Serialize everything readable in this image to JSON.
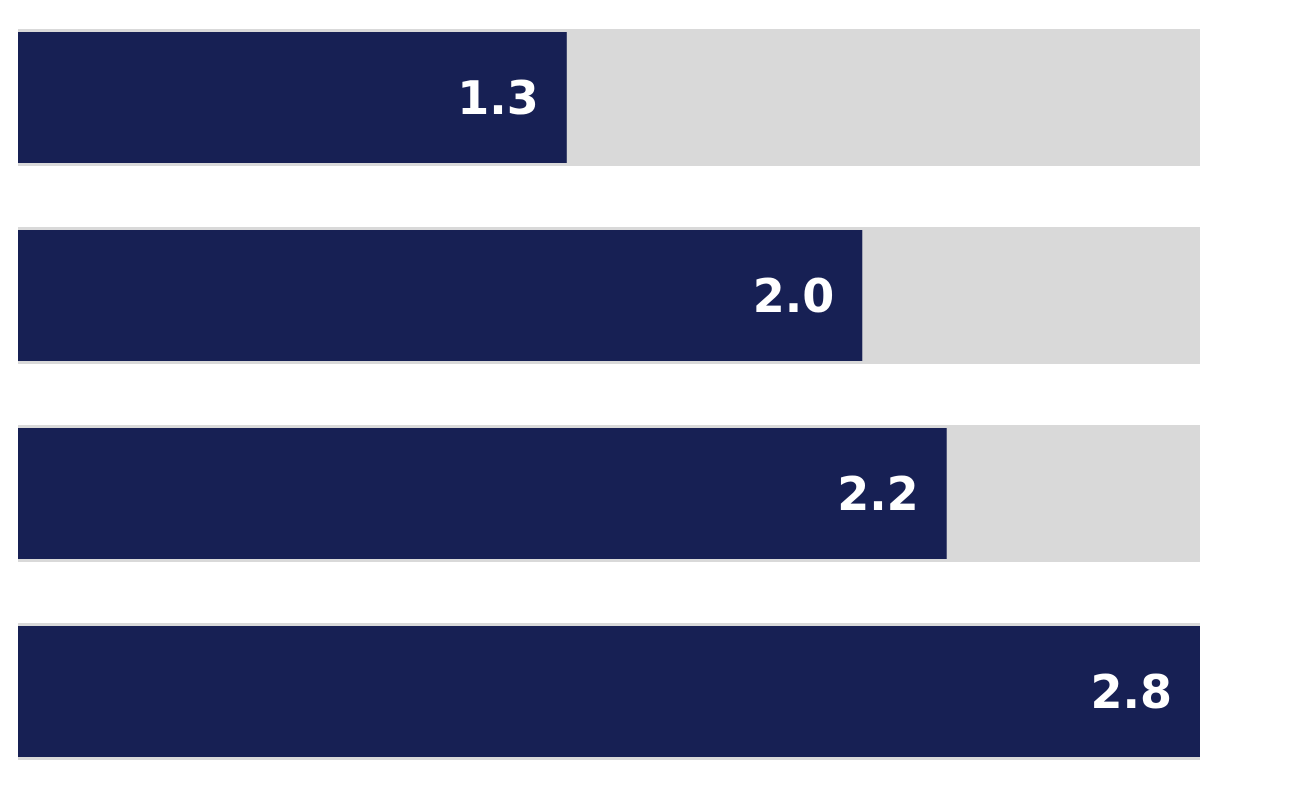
{
  "chart_data": {
    "type": "bar",
    "orientation": "horizontal",
    "values": [
      1.3,
      2.0,
      2.2,
      2.8
    ],
    "value_labels": [
      "1.3",
      "2.0",
      "2.2",
      "2.8"
    ],
    "color": "#172054",
    "track_color": "#d9d9d9",
    "label_color": "#ffffff",
    "xlim": [
      0,
      2.8
    ]
  }
}
